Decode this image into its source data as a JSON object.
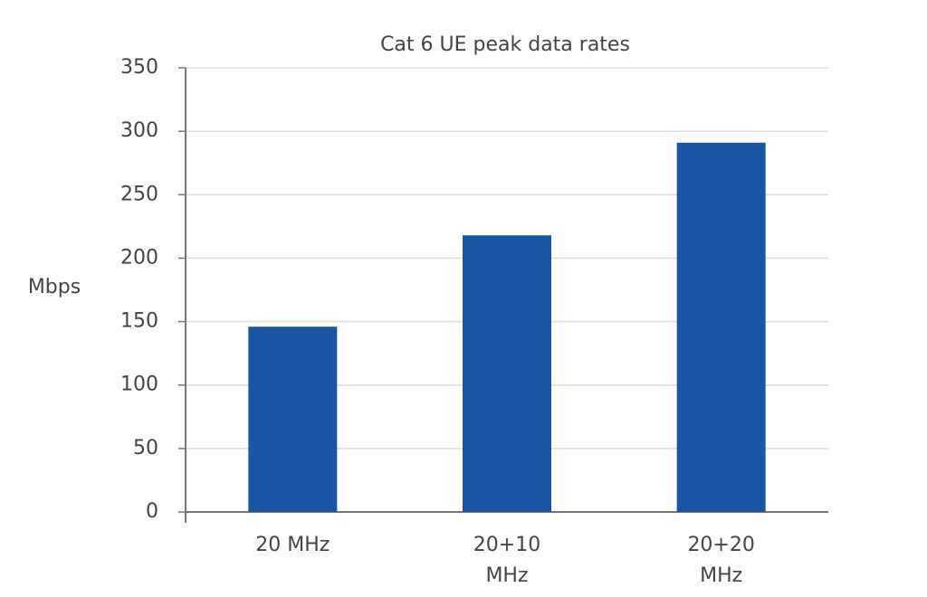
{
  "chart_data": {
    "type": "bar",
    "title": "Cat 6 UE peak data rates",
    "y_label": "Mbps",
    "categories": [
      "20 MHz",
      "20+10 MHz",
      "20+20 MHz"
    ],
    "values": [
      146,
      218,
      291
    ],
    "color": "#1a55a3",
    "ylim": [
      0,
      350
    ],
    "yticks": [
      0,
      50,
      100,
      150,
      200,
      250,
      300,
      350
    ],
    "grid": true
  }
}
